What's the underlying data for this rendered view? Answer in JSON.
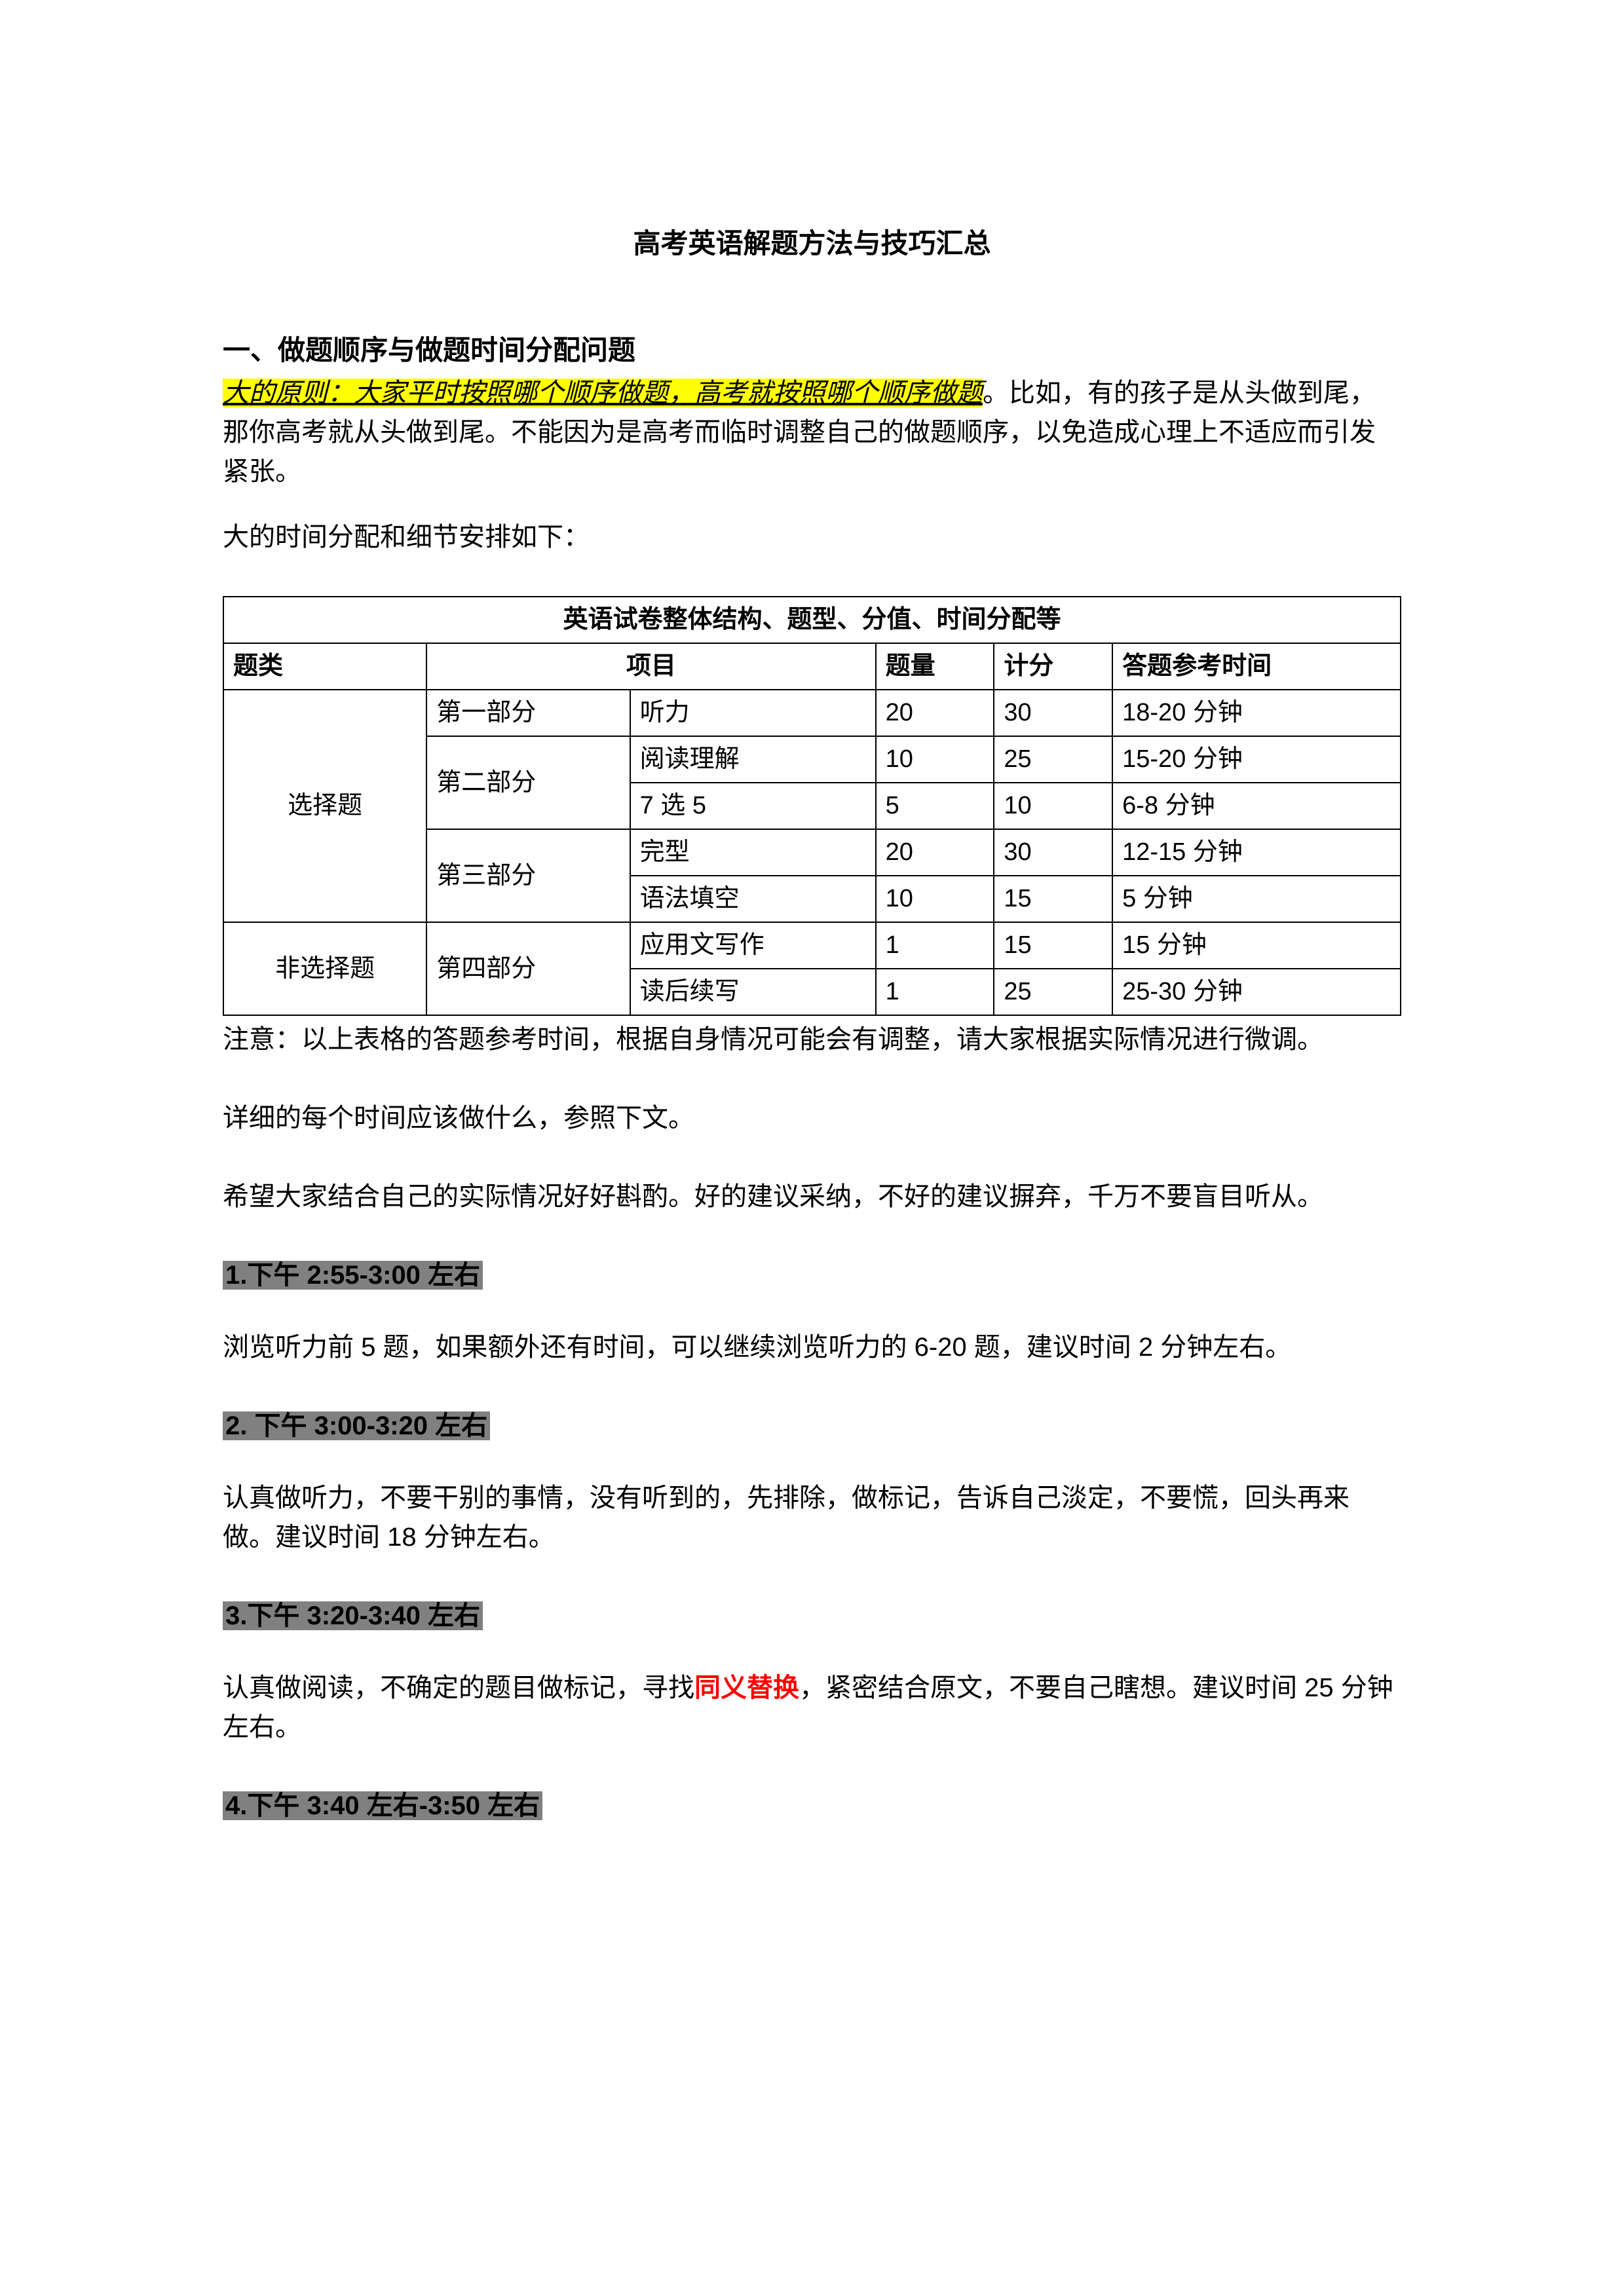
{
  "title": "高考英语解题方法与技巧汇总",
  "section1": {
    "heading": "一、做题顺序与做题时间分配问题",
    "highlight": "大的原则：大家平时按照哪个顺序做题，高考就按照哪个顺序做题",
    "rest": "。比如，有的孩子是从头做到尾，那你高考就从头做到尾。不能因为是高考而临时调整自己的做题顺序，以免造成心理上不适应而引发紧张。",
    "subpara": "大的时间分配和细节安排如下："
  },
  "table": {
    "caption": "英语试卷整体结构、题型、分值、时间分配等",
    "headers": [
      "题类",
      "项目",
      "",
      "题量",
      "计分",
      "答题参考时间"
    ],
    "rows": [
      {
        "cat": "选择题",
        "catRowspan": 5,
        "part": "第一部分",
        "partRowspan": 1,
        "item": "听力",
        "qty": "20",
        "score": "30",
        "time": "18-20 分钟"
      },
      {
        "part": "第二部分",
        "partRowspan": 2,
        "item": "阅读理解",
        "qty": "10",
        "score": "25",
        "time": "15-20 分钟"
      },
      {
        "item": "7 选 5",
        "qty": "5",
        "score": "10",
        "time": "6-8 分钟"
      },
      {
        "part": "第三部分",
        "partRowspan": 2,
        "item": "完型",
        "qty": "20",
        "score": "30",
        "time": "12-15 分钟"
      },
      {
        "item": "语法填空",
        "qty": "10",
        "score": "15",
        "time": "5 分钟"
      },
      {
        "cat": "非选择题",
        "catRowspan": 2,
        "part": "第四部分",
        "partRowspan": 2,
        "item": "应用文写作",
        "qty": "1",
        "score": "15",
        "time": "15 分钟"
      },
      {
        "item": "读后续写",
        "qty": "1",
        "score": "25",
        "time": "25-30 分钟"
      }
    ]
  },
  "note1": "注意：以上表格的答题参考时间，根据自身情况可能会有调整，请大家根据实际情况进行微调。",
  "note2": "详细的每个时间应该做什么，参照下文。",
  "note3": "希望大家结合自己的实际情况好好斟酌。好的建议采纳，不好的建议摒弃，千万不要盲目听从。",
  "times": [
    {
      "h": "1.下午 2:55-3:00 左右",
      "p": "浏览听力前 5 题，如果额外还有时间，可以继续浏览听力的 6-20 题，建议时间 2 分钟左右。"
    },
    {
      "h": "2. 下午 3:00-3:20 左右",
      "p": "认真做听力，不要干别的事情，没有听到的，先排除，做标记，告诉自己淡定，不要慌，回头再来做。建议时间 18 分钟左右。"
    },
    {
      "h": "3.下午 3:20-3:40 左右",
      "p_before": "认真做阅读，不确定的题目做标记，寻找",
      "p_red": "同义替换",
      "p_after": "，紧密结合原文，不要自己瞎想。建议时间 25 分钟左右。"
    },
    {
      "h": "4.下午 3:40 左右-3:50 左右"
    }
  ]
}
